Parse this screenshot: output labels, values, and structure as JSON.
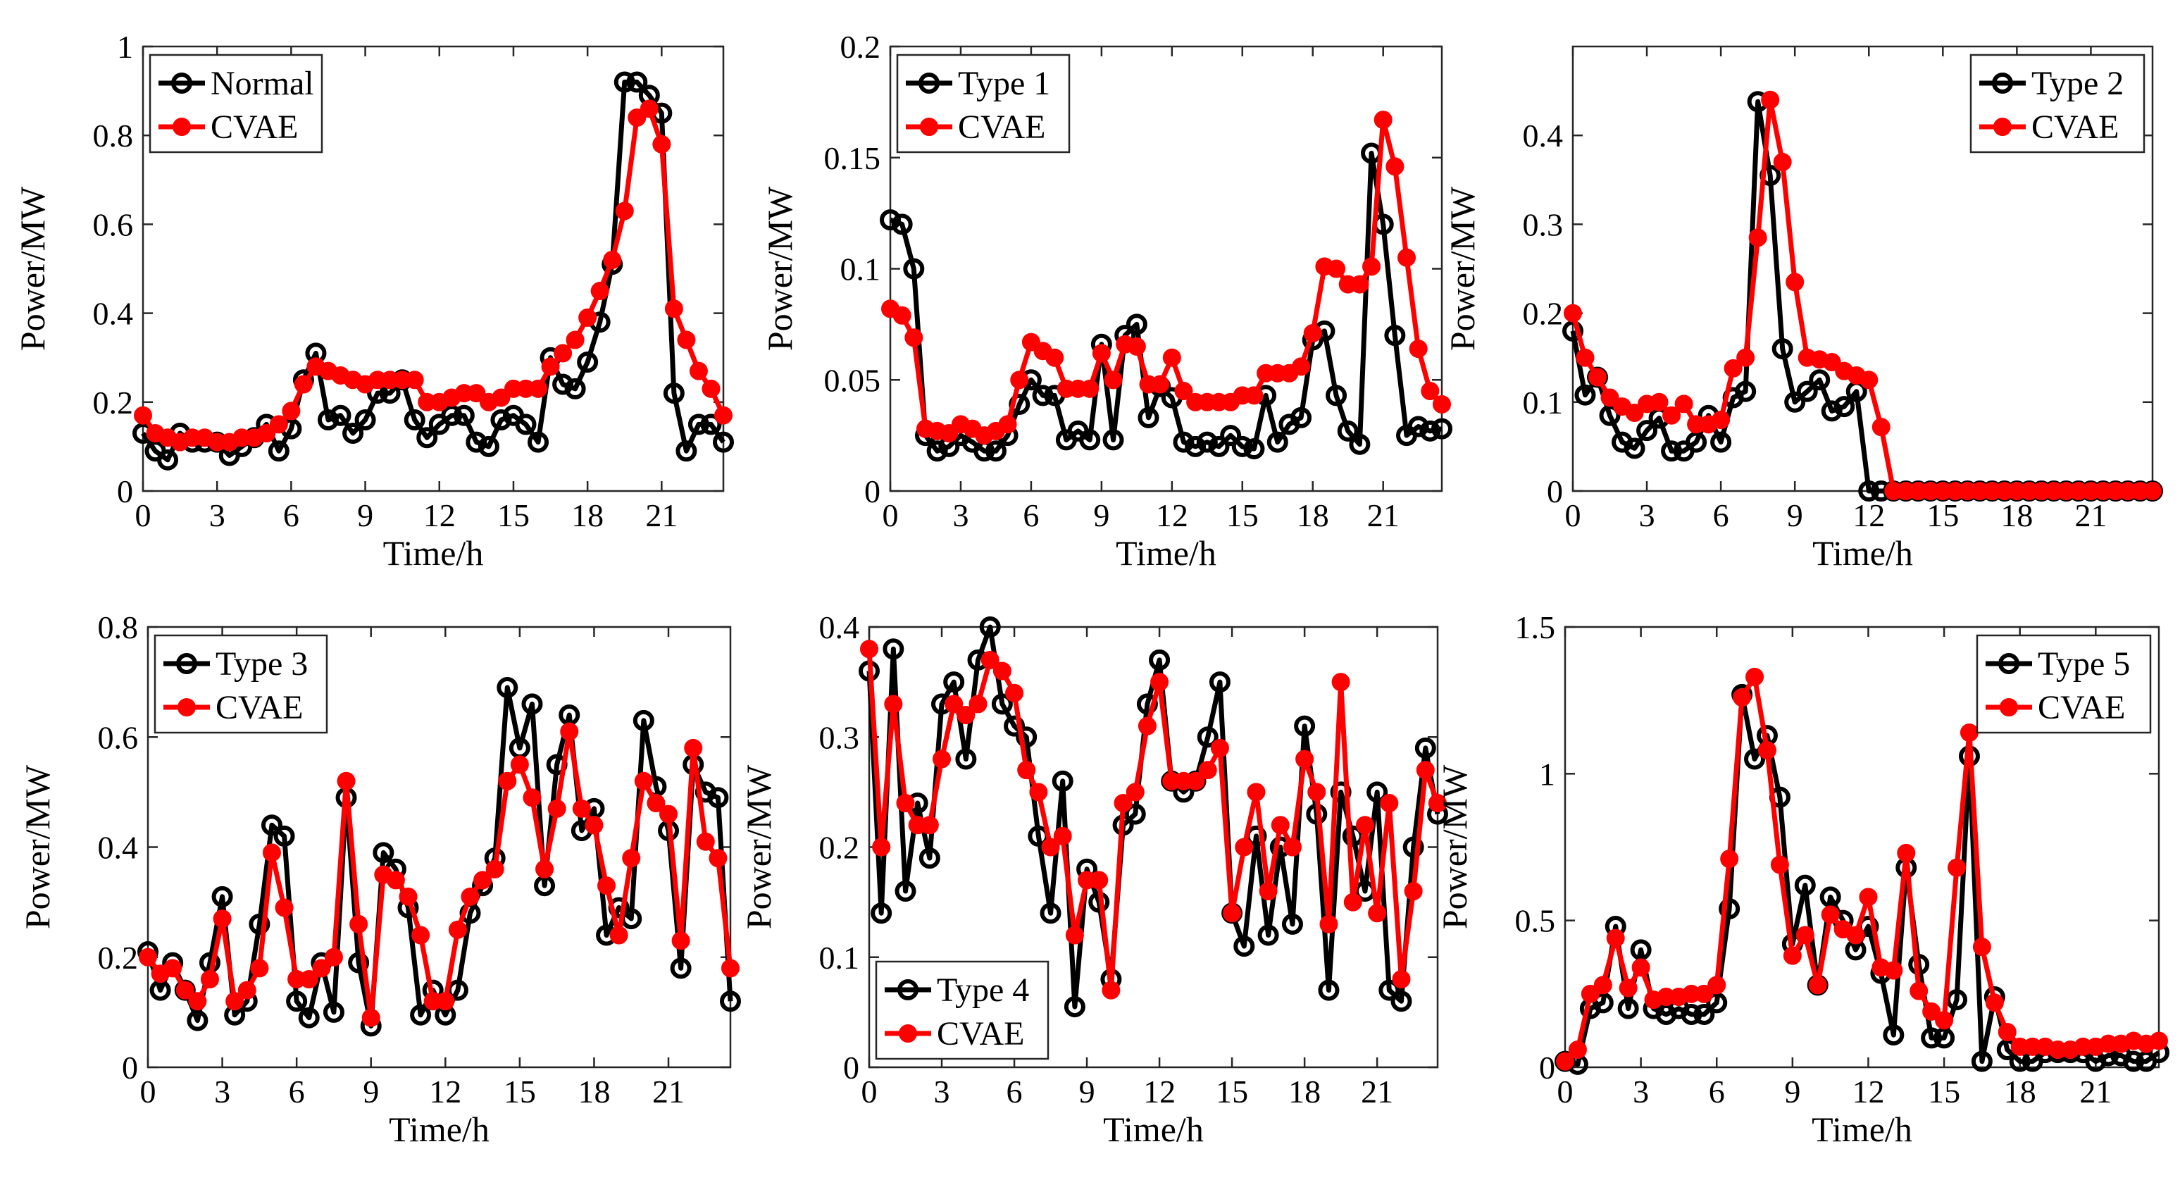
{
  "figure": {
    "series_colors": {
      "actual": "#000000",
      "generated": "#ff0000"
    },
    "generated_name": "CVAE"
  },
  "chart_data": [
    {
      "type": "line",
      "panel": "top-left",
      "xlabel": "Time/h",
      "ylabel": "Power/MW",
      "xlim": [
        0,
        23.5
      ],
      "ylim": [
        0,
        1
      ],
      "xticks": [
        0,
        3,
        6,
        9,
        12,
        15,
        18,
        21
      ],
      "yticks": [
        0,
        0.2,
        0.4,
        0.6,
        0.8,
        1
      ],
      "ytick_labels": [
        "0",
        "0.2",
        "0.4",
        "0.6",
        "0.8",
        "1"
      ],
      "legend_position": "top-left",
      "x": [
        0,
        0.5,
        1,
        1.5,
        2,
        2.5,
        3,
        3.5,
        4,
        4.5,
        5,
        5.5,
        6,
        6.5,
        7,
        7.5,
        8,
        8.5,
        9,
        9.5,
        10,
        10.5,
        11,
        11.5,
        12,
        12.5,
        13,
        13.5,
        14,
        14.5,
        15,
        15.5,
        16,
        16.5,
        17,
        17.5,
        18,
        18.5,
        19,
        19.5,
        20,
        20.5,
        21,
        21.5,
        22,
        22.5,
        23,
        23.5
      ],
      "series": [
        {
          "name": "Normal",
          "role": "actual",
          "values": [
            0.13,
            0.09,
            0.07,
            0.13,
            0.11,
            0.11,
            0.11,
            0.08,
            0.1,
            0.12,
            0.15,
            0.09,
            0.14,
            0.25,
            0.31,
            0.16,
            0.17,
            0.13,
            0.16,
            0.22,
            0.22,
            0.25,
            0.16,
            0.12,
            0.15,
            0.17,
            0.17,
            0.11,
            0.1,
            0.16,
            0.17,
            0.15,
            0.11,
            0.3,
            0.24,
            0.23,
            0.29,
            0.38,
            0.51,
            0.92,
            0.92,
            0.89,
            0.85,
            0.22,
            0.09,
            0.15,
            0.15,
            0.11
          ]
        },
        {
          "name": "CVAE",
          "role": "generated",
          "values": [
            0.17,
            0.13,
            0.12,
            0.11,
            0.12,
            0.12,
            0.11,
            0.11,
            0.12,
            0.12,
            0.13,
            0.15,
            0.18,
            0.24,
            0.28,
            0.27,
            0.26,
            0.25,
            0.24,
            0.25,
            0.25,
            0.25,
            0.25,
            0.2,
            0.2,
            0.21,
            0.22,
            0.22,
            0.2,
            0.21,
            0.23,
            0.23,
            0.23,
            0.28,
            0.31,
            0.34,
            0.39,
            0.45,
            0.52,
            0.63,
            0.84,
            0.86,
            0.78,
            0.41,
            0.34,
            0.27,
            0.23,
            0.17
          ]
        }
      ]
    },
    {
      "type": "line",
      "panel": "top-middle",
      "xlabel": "Time/h",
      "ylabel": "Power/MW",
      "xlim": [
        0,
        23.5
      ],
      "ylim": [
        0,
        0.2
      ],
      "xticks": [
        0,
        3,
        6,
        9,
        12,
        15,
        18,
        21
      ],
      "yticks": [
        0,
        0.05,
        0.1,
        0.15,
        0.2
      ],
      "ytick_labels": [
        "0",
        "0.05",
        "0.1",
        "0.15",
        "0.2"
      ],
      "legend_position": "top-left",
      "x": [
        0,
        0.5,
        1,
        1.5,
        2,
        2.5,
        3,
        3.5,
        4,
        4.5,
        5,
        5.5,
        6,
        6.5,
        7,
        7.5,
        8,
        8.5,
        9,
        9.5,
        10,
        10.5,
        11,
        11.5,
        12,
        12.5,
        13,
        13.5,
        14,
        14.5,
        15,
        15.5,
        16,
        16.5,
        17,
        17.5,
        18,
        18.5,
        19,
        19.5,
        20,
        20.5,
        21,
        21.5,
        22,
        22.5,
        23,
        23.5
      ],
      "series": [
        {
          "name": "Type 1",
          "role": "actual",
          "values": [
            0.122,
            0.12,
            0.1,
            0.025,
            0.018,
            0.02,
            0.025,
            0.022,
            0.018,
            0.018,
            0.025,
            0.039,
            0.05,
            0.043,
            0.043,
            0.023,
            0.027,
            0.023,
            0.066,
            0.023,
            0.07,
            0.075,
            0.033,
            0.047,
            0.042,
            0.022,
            0.02,
            0.022,
            0.02,
            0.025,
            0.02,
            0.019,
            0.043,
            0.022,
            0.03,
            0.033,
            0.068,
            0.072,
            0.043,
            0.027,
            0.021,
            0.152,
            0.12,
            0.07,
            0.025,
            0.029,
            0.027,
            0.028
          ]
        },
        {
          "name": "CVAE",
          "role": "generated",
          "values": [
            0.082,
            0.079,
            0.069,
            0.028,
            0.027,
            0.026,
            0.03,
            0.028,
            0.025,
            0.027,
            0.03,
            0.05,
            0.067,
            0.063,
            0.06,
            0.046,
            0.046,
            0.046,
            0.062,
            0.05,
            0.066,
            0.065,
            0.048,
            0.048,
            0.06,
            0.045,
            0.04,
            0.04,
            0.04,
            0.04,
            0.043,
            0.043,
            0.053,
            0.053,
            0.053,
            0.056,
            0.071,
            0.101,
            0.1,
            0.093,
            0.093,
            0.101,
            0.167,
            0.146,
            0.105,
            0.064,
            0.045,
            0.039
          ]
        }
      ]
    },
    {
      "type": "line",
      "panel": "top-right",
      "xlabel": "Time/h",
      "ylabel": "Power/MW",
      "xlim": [
        0,
        23.5
      ],
      "ylim": [
        0,
        0.5
      ],
      "xticks": [
        0,
        3,
        6,
        9,
        12,
        15,
        18,
        21
      ],
      "yticks": [
        0,
        0.1,
        0.2,
        0.3,
        0.4
      ],
      "ytick_labels": [
        "0",
        "0.1",
        "0.2",
        "0.3",
        "0.4"
      ],
      "legend_position": "top-right",
      "x": [
        0,
        0.5,
        1,
        1.5,
        2,
        2.5,
        3,
        3.5,
        4,
        4.5,
        5,
        5.5,
        6,
        6.5,
        7,
        7.5,
        8,
        8.5,
        9,
        9.5,
        10,
        10.5,
        11,
        11.5,
        12,
        12.5,
        13,
        13.5,
        14,
        14.5,
        15,
        15.5,
        16,
        16.5,
        17,
        17.5,
        18,
        18.5,
        19,
        19.5,
        20,
        20.5,
        21,
        21.5,
        22,
        22.5,
        23,
        23.5
      ],
      "series": [
        {
          "name": "Type 2",
          "role": "actual",
          "values": [
            0.18,
            0.108,
            0.128,
            0.085,
            0.055,
            0.048,
            0.068,
            0.082,
            0.045,
            0.045,
            0.055,
            0.085,
            0.055,
            0.105,
            0.112,
            0.438,
            0.355,
            0.16,
            0.1,
            0.112,
            0.125,
            0.09,
            0.095,
            0.112,
            0,
            0,
            0,
            0,
            0,
            0,
            0,
            0,
            0,
            0,
            0,
            0,
            0,
            0,
            0,
            0,
            0,
            0,
            0,
            0,
            0,
            0,
            0,
            0
          ]
        },
        {
          "name": "CVAE",
          "role": "generated",
          "values": [
            0.2,
            0.15,
            0.128,
            0.105,
            0.095,
            0.088,
            0.098,
            0.1,
            0.085,
            0.098,
            0.075,
            0.075,
            0.08,
            0.138,
            0.15,
            0.285,
            0.44,
            0.37,
            0.235,
            0.15,
            0.148,
            0.145,
            0.135,
            0.13,
            0.125,
            0.072,
            0,
            0,
            0,
            0,
            0,
            0,
            0,
            0,
            0,
            0,
            0,
            0,
            0,
            0,
            0,
            0,
            0,
            0,
            0,
            0,
            0,
            0
          ]
        }
      ]
    },
    {
      "type": "line",
      "panel": "bottom-left",
      "xlabel": "Time/h",
      "ylabel": "Power/MW",
      "xlim": [
        0,
        23.5
      ],
      "ylim": [
        0,
        0.8
      ],
      "xticks": [
        0,
        3,
        6,
        9,
        12,
        15,
        18,
        21
      ],
      "yticks": [
        0,
        0.2,
        0.4,
        0.6,
        0.8
      ],
      "ytick_labels": [
        "0",
        "0.2",
        "0.4",
        "0.6",
        "0.8"
      ],
      "legend_position": "top-left",
      "x": [
        0,
        0.5,
        1,
        1.5,
        2,
        2.5,
        3,
        3.5,
        4,
        4.5,
        5,
        5.5,
        6,
        6.5,
        7,
        7.5,
        8,
        8.5,
        9,
        9.5,
        10,
        10.5,
        11,
        11.5,
        12,
        12.5,
        13,
        13.5,
        14,
        14.5,
        15,
        15.5,
        16,
        16.5,
        17,
        17.5,
        18,
        18.5,
        19,
        19.5,
        20,
        20.5,
        21,
        21.5,
        22,
        22.5,
        23,
        23.5
      ],
      "series": [
        {
          "name": "Type 3",
          "role": "actual",
          "values": [
            0.21,
            0.14,
            0.19,
            0.14,
            0.085,
            0.19,
            0.31,
            0.095,
            0.12,
            0.26,
            0.44,
            0.42,
            0.12,
            0.09,
            0.19,
            0.1,
            0.49,
            0.19,
            0.075,
            0.39,
            0.36,
            0.29,
            0.095,
            0.14,
            0.095,
            0.14,
            0.28,
            0.33,
            0.38,
            0.69,
            0.58,
            0.66,
            0.33,
            0.55,
            0.64,
            0.43,
            0.47,
            0.24,
            0.29,
            0.27,
            0.63,
            0.51,
            0.43,
            0.18,
            0.55,
            0.5,
            0.49,
            0.12
          ]
        },
        {
          "name": "CVAE",
          "role": "generated",
          "values": [
            0.2,
            0.17,
            0.18,
            0.14,
            0.12,
            0.16,
            0.27,
            0.12,
            0.14,
            0.18,
            0.39,
            0.29,
            0.16,
            0.16,
            0.18,
            0.2,
            0.52,
            0.26,
            0.09,
            0.35,
            0.34,
            0.31,
            0.24,
            0.12,
            0.12,
            0.25,
            0.31,
            0.34,
            0.36,
            0.52,
            0.55,
            0.49,
            0.36,
            0.47,
            0.61,
            0.47,
            0.44,
            0.33,
            0.24,
            0.38,
            0.52,
            0.48,
            0.46,
            0.23,
            0.58,
            0.41,
            0.38,
            0.18
          ]
        }
      ]
    },
    {
      "type": "line",
      "panel": "bottom-middle",
      "xlabel": "Time/h",
      "ylabel": "Power/MW",
      "xlim": [
        0,
        23.5
      ],
      "ylim": [
        0,
        0.4
      ],
      "xticks": [
        0,
        3,
        6,
        9,
        12,
        15,
        18,
        21
      ],
      "yticks": [
        0,
        0.1,
        0.2,
        0.3,
        0.4
      ],
      "ytick_labels": [
        "0",
        "0.1",
        "0.2",
        "0.3",
        "0.4"
      ],
      "legend_position": "bottom-left",
      "x": [
        0,
        0.5,
        1,
        1.5,
        2,
        2.5,
        3,
        3.5,
        4,
        4.5,
        5,
        5.5,
        6,
        6.5,
        7,
        7.5,
        8,
        8.5,
        9,
        9.5,
        10,
        10.5,
        11,
        11.5,
        12,
        12.5,
        13,
        13.5,
        14,
        14.5,
        15,
        15.5,
        16,
        16.5,
        17,
        17.5,
        18,
        18.5,
        19,
        19.5,
        20,
        20.5,
        21,
        21.5,
        22,
        22.5,
        23,
        23.5
      ],
      "series": [
        {
          "name": "Type 4",
          "role": "actual",
          "values": [
            0.36,
            0.14,
            0.38,
            0.16,
            0.24,
            0.19,
            0.33,
            0.35,
            0.28,
            0.37,
            0.4,
            0.33,
            0.31,
            0.3,
            0.21,
            0.14,
            0.26,
            0.055,
            0.18,
            0.15,
            0.08,
            0.22,
            0.23,
            0.33,
            0.37,
            0.26,
            0.25,
            0.26,
            0.3,
            0.35,
            0.14,
            0.11,
            0.21,
            0.12,
            0.2,
            0.13,
            0.31,
            0.23,
            0.07,
            0.25,
            0.21,
            0.16,
            0.25,
            0.07,
            0.06,
            0.2,
            0.29,
            0.23
          ]
        },
        {
          "name": "CVAE",
          "role": "generated",
          "values": [
            0.38,
            0.2,
            0.33,
            0.24,
            0.22,
            0.22,
            0.28,
            0.33,
            0.32,
            0.33,
            0.37,
            0.36,
            0.34,
            0.27,
            0.25,
            0.2,
            0.21,
            0.12,
            0.17,
            0.17,
            0.07,
            0.24,
            0.25,
            0.31,
            0.35,
            0.26,
            0.26,
            0.26,
            0.27,
            0.29,
            0.14,
            0.2,
            0.25,
            0.16,
            0.22,
            0.2,
            0.28,
            0.25,
            0.13,
            0.35,
            0.15,
            0.22,
            0.14,
            0.24,
            0.08,
            0.16,
            0.27,
            0.24
          ]
        }
      ]
    },
    {
      "type": "line",
      "panel": "bottom-right",
      "xlabel": "Time/h",
      "ylabel": "Power/MW",
      "xlim": [
        0,
        23.5
      ],
      "ylim": [
        0,
        1.5
      ],
      "xticks": [
        0,
        3,
        6,
        9,
        12,
        15,
        18,
        21
      ],
      "yticks": [
        0,
        0.5,
        1,
        1.5
      ],
      "ytick_labels": [
        "0",
        "0.5",
        "1",
        "1.5"
      ],
      "legend_position": "top-right",
      "x": [
        0,
        0.5,
        1,
        1.5,
        2,
        2.5,
        3,
        3.5,
        4,
        4.5,
        5,
        5.5,
        6,
        6.5,
        7,
        7.5,
        8,
        8.5,
        9,
        9.5,
        10,
        10.5,
        11,
        11.5,
        12,
        12.5,
        13,
        13.5,
        14,
        14.5,
        15,
        15.5,
        16,
        16.5,
        17,
        17.5,
        18,
        18.5,
        19,
        19.5,
        20,
        20.5,
        21,
        21.5,
        22,
        22.5,
        23,
        23.5
      ],
      "series": [
        {
          "name": "Type 5",
          "role": "actual",
          "values": [
            0.02,
            0.01,
            0.2,
            0.22,
            0.48,
            0.2,
            0.4,
            0.2,
            0.18,
            0.2,
            0.18,
            0.18,
            0.22,
            0.54,
            1.27,
            1.05,
            1.13,
            0.92,
            0.42,
            0.62,
            0.28,
            0.58,
            0.5,
            0.4,
            0.48,
            0.32,
            0.11,
            0.68,
            0.35,
            0.1,
            0.1,
            0.23,
            1.06,
            0.02,
            0.24,
            0.06,
            0.02,
            0.02,
            0.05,
            0.05,
            0.05,
            0.05,
            0.02,
            0.04,
            0.04,
            0.02,
            0.02,
            0.05
          ]
        },
        {
          "name": "CVAE",
          "role": "generated",
          "values": [
            0.02,
            0.06,
            0.25,
            0.28,
            0.44,
            0.27,
            0.34,
            0.23,
            0.24,
            0.24,
            0.25,
            0.25,
            0.28,
            0.71,
            1.26,
            1.33,
            1.08,
            0.69,
            0.38,
            0.45,
            0.28,
            0.52,
            0.47,
            0.45,
            0.58,
            0.34,
            0.33,
            0.73,
            0.26,
            0.19,
            0.16,
            0.68,
            1.14,
            0.41,
            0.22,
            0.12,
            0.07,
            0.07,
            0.07,
            0.06,
            0.06,
            0.07,
            0.07,
            0.08,
            0.08,
            0.09,
            0.08,
            0.09
          ]
        }
      ]
    }
  ]
}
